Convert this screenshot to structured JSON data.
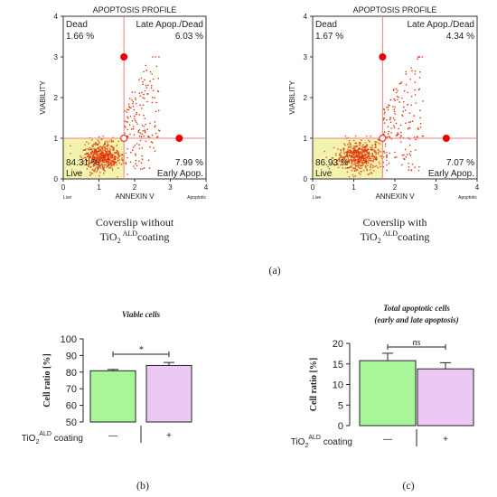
{
  "chart_data": [
    {
      "type": "scatter",
      "title": "APOPTOSIS PROFILE",
      "xlabel": "ANNEXIN V",
      "ylabel": "VIABILITY",
      "xlim": [
        0,
        4
      ],
      "ylim": [
        0,
        4
      ],
      "x_ticks": [
        "0",
        "1",
        "2",
        "3",
        "4"
      ],
      "y_ticks": [
        "0",
        "1",
        "2",
        "3",
        "4"
      ],
      "x_end_labels": {
        "left": "Live",
        "right": "Apoptotic"
      },
      "quadrant_divider": {
        "x": 1.7,
        "y": 1.0
      },
      "quadrants": {
        "dead": {
          "label": "Dead",
          "value": "1.66 %"
        },
        "late": {
          "label": "Late Apop./Dead",
          "value": "6.03 %"
        },
        "live": {
          "label": "Live",
          "value": "84.31 %"
        },
        "early": {
          "label": "Early Apop.",
          "value": "7.99 %"
        }
      },
      "caption_line1": "Coverslip without",
      "caption_line2_main": "TiO",
      "caption_line2_sub": "2",
      "caption_line2_sup": "ALD",
      "caption_line2_end": "coating",
      "point_color": "#e03000",
      "live_region_color": "#f3f3b0"
    },
    {
      "type": "scatter",
      "title": "APOPTOSIS PROFILE",
      "xlabel": "ANNEXIN V",
      "ylabel": "VIABILITY",
      "xlim": [
        0,
        4
      ],
      "ylim": [
        0,
        4
      ],
      "x_ticks": [
        "0",
        "1",
        "2",
        "3",
        "4"
      ],
      "y_ticks": [
        "0",
        "1",
        "2",
        "3",
        "4"
      ],
      "x_end_labels": {
        "left": "Live",
        "right": "Apoptotic"
      },
      "quadrant_divider": {
        "x": 1.7,
        "y": 1.0
      },
      "quadrants": {
        "dead": {
          "label": "Dead",
          "value": "1.67 %"
        },
        "late": {
          "label": "Late Apop./Dead",
          "value": "4.34 %"
        },
        "live": {
          "label": "Live",
          "value": "86.93 %"
        },
        "early": {
          "label": "Early Apop.",
          "value": "7.07 %"
        }
      },
      "caption_line1": "Coverslip with",
      "caption_line2_main": "TiO",
      "caption_line2_sub": "2",
      "caption_line2_sup": "ALD",
      "caption_line2_end": "coating",
      "point_color": "#e03000",
      "live_region_color": "#f3f3b0"
    },
    {
      "type": "bar",
      "title": "Viable cells",
      "ylabel": "Cell ratio [%]",
      "ylim": [
        50,
        100
      ],
      "y_ticks": [
        "50",
        "60",
        "70",
        "80",
        "90",
        "100"
      ],
      "categories": [
        "—",
        "+"
      ],
      "values": [
        80.8,
        84.0
      ],
      "errors": [
        0.8,
        1.8
      ],
      "colors": [
        "#a8f59a",
        "#ecc8f4"
      ],
      "significance": "*",
      "group_label_main": "TiO",
      "group_label_sub": "2",
      "group_label_sup": "ALD",
      "group_label_end": " coating"
    },
    {
      "type": "bar",
      "title": "Total apoptotic cells",
      "subtitle": "(early and late apoptosis)",
      "ylabel": "Cell ratio [%]",
      "ylim": [
        0,
        20
      ],
      "y_ticks": [
        "0",
        "5",
        "10",
        "15",
        "20"
      ],
      "categories": [
        "—",
        "+"
      ],
      "values": [
        15.8,
        13.8
      ],
      "errors": [
        1.8,
        1.5
      ],
      "colors": [
        "#a8f59a",
        "#ecc8f4"
      ],
      "significance": "ns",
      "group_label_main": "TiO",
      "group_label_sub": "2",
      "group_label_sup": "ALD",
      "group_label_end": " coating"
    }
  ],
  "panel_labels": {
    "a": "(a)",
    "b": "(b)",
    "c": "(c)"
  }
}
